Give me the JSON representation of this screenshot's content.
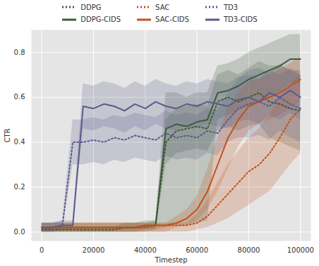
{
  "chart_data": {
    "type": "line",
    "xlabel": "Timestep",
    "ylabel": "CTR",
    "legend": "top",
    "grid": true,
    "xlim": [
      -4000,
      104000
    ],
    "xticks": [
      0,
      20000,
      40000,
      60000,
      80000,
      100000
    ],
    "ylim": [
      -0.04,
      0.9
    ],
    "yticks": [
      {
        "value": 0,
        "label": "0.0"
      },
      {
        "value": 0.2,
        "label": "0.2"
      },
      {
        "value": 0.4,
        "label": "0.4"
      },
      {
        "value": 0.6,
        "label": "0.6"
      },
      {
        "value": 0.8,
        "label": "0.8"
      }
    ],
    "x": [
      0,
      4000,
      8000,
      12000,
      16000,
      20000,
      24000,
      28000,
      32000,
      36000,
      40000,
      44000,
      48000,
      52000,
      56000,
      60000,
      64000,
      68000,
      72000,
      76000,
      80000,
      84000,
      88000,
      92000,
      96000,
      100000
    ],
    "series": [
      {
        "name": "DDPG",
        "color": "#3f5b3c",
        "line_style": "dotted",
        "values": [
          0.01,
          0.01,
          0.01,
          0.01,
          0.01,
          0.01,
          0.01,
          0.01,
          0.02,
          0.02,
          0.02,
          0.03,
          0.4,
          0.45,
          0.46,
          0.47,
          0.46,
          0.58,
          0.6,
          0.58,
          0.6,
          0.62,
          0.58,
          0.57,
          0.55,
          0.54
        ],
        "lower": [
          0,
          0,
          0,
          0,
          0,
          0,
          0,
          0,
          0,
          0,
          0,
          0.01,
          0.3,
          0.35,
          0.36,
          0.37,
          0.36,
          0.45,
          0.47,
          0.45,
          0.47,
          0.48,
          0.42,
          0.4,
          0.38,
          0.36
        ],
        "upper": [
          0.02,
          0.02,
          0.02,
          0.02,
          0.02,
          0.02,
          0.02,
          0.02,
          0.04,
          0.04,
          0.04,
          0.05,
          0.5,
          0.55,
          0.56,
          0.57,
          0.56,
          0.7,
          0.72,
          0.7,
          0.73,
          0.76,
          0.74,
          0.74,
          0.72,
          0.72
        ]
      },
      {
        "name": "SAC",
        "color": "#c4501b",
        "line_style": "dotted",
        "values": [
          0.02,
          0.02,
          0.02,
          0.02,
          0.02,
          0.02,
          0.02,
          0.02,
          0.02,
          0.02,
          0.02,
          0.03,
          0.03,
          0.03,
          0.03,
          0.04,
          0.07,
          0.12,
          0.17,
          0.22,
          0.27,
          0.3,
          0.35,
          0.42,
          0.5,
          0.55
        ],
        "lower": [
          0,
          0,
          0,
          0,
          0,
          0,
          0,
          0,
          0,
          0,
          0,
          0,
          0,
          0,
          0,
          0.01,
          0.02,
          0.04,
          0.06,
          0.09,
          0.12,
          0.15,
          0.18,
          0.24,
          0.3,
          0.35
        ],
        "upper": [
          0.04,
          0.04,
          0.04,
          0.04,
          0.04,
          0.04,
          0.04,
          0.04,
          0.04,
          0.04,
          0.04,
          0.04,
          0.04,
          0.04,
          0.04,
          0.08,
          0.14,
          0.22,
          0.3,
          0.36,
          0.42,
          0.46,
          0.52,
          0.6,
          0.66,
          0.7
        ]
      },
      {
        "name": "TD3",
        "color": "#5b5a8c",
        "line_style": "dotted",
        "values": [
          0.02,
          0.02,
          0.03,
          0.4,
          0.4,
          0.41,
          0.4,
          0.42,
          0.41,
          0.43,
          0.42,
          0.41,
          0.44,
          0.42,
          0.43,
          0.42,
          0.45,
          0.44,
          0.5,
          0.55,
          0.57,
          0.58,
          0.56,
          0.6,
          0.57,
          0.55
        ],
        "lower": [
          0,
          0,
          0.01,
          0.3,
          0.3,
          0.31,
          0.3,
          0.32,
          0.31,
          0.33,
          0.32,
          0.31,
          0.34,
          0.32,
          0.33,
          0.32,
          0.35,
          0.34,
          0.4,
          0.42,
          0.42,
          0.43,
          0.41,
          0.45,
          0.42,
          0.4
        ],
        "upper": [
          0.04,
          0.04,
          0.05,
          0.5,
          0.5,
          0.51,
          0.5,
          0.52,
          0.51,
          0.53,
          0.52,
          0.51,
          0.54,
          0.52,
          0.53,
          0.52,
          0.55,
          0.54,
          0.62,
          0.68,
          0.72,
          0.73,
          0.71,
          0.75,
          0.72,
          0.7
        ]
      },
      {
        "name": "DDPG-CIDS",
        "color": "#3f5b3c",
        "line_style": "solid",
        "values": [
          0.02,
          0.02,
          0.02,
          0.02,
          0.02,
          0.02,
          0.02,
          0.02,
          0.02,
          0.02,
          0.03,
          0.03,
          0.46,
          0.48,
          0.47,
          0.49,
          0.5,
          0.62,
          0.63,
          0.65,
          0.68,
          0.7,
          0.72,
          0.74,
          0.77,
          0.77
        ],
        "lower": [
          0,
          0,
          0,
          0,
          0,
          0,
          0,
          0,
          0,
          0,
          0.01,
          0.01,
          0.02,
          0.03,
          0.03,
          0.04,
          0.05,
          0.5,
          0.52,
          0.54,
          0.56,
          0.58,
          0.6,
          0.62,
          0.66,
          0.66
        ],
        "upper": [
          0.04,
          0.04,
          0.04,
          0.04,
          0.04,
          0.04,
          0.04,
          0.04,
          0.04,
          0.04,
          0.05,
          0.05,
          0.62,
          0.62,
          0.6,
          0.62,
          0.62,
          0.74,
          0.75,
          0.77,
          0.8,
          0.82,
          0.84,
          0.86,
          0.88,
          0.88
        ]
      },
      {
        "name": "SAC-CIDS",
        "color": "#c4501b",
        "line_style": "solid",
        "values": [
          0.02,
          0.02,
          0.02,
          0.02,
          0.02,
          0.02,
          0.02,
          0.02,
          0.02,
          0.02,
          0.03,
          0.03,
          0.03,
          0.04,
          0.06,
          0.1,
          0.18,
          0.3,
          0.42,
          0.5,
          0.56,
          0.58,
          0.6,
          0.62,
          0.65,
          0.68
        ],
        "lower": [
          0,
          0,
          0,
          0,
          0,
          0,
          0,
          0,
          0,
          0,
          0,
          0,
          0,
          0.02,
          0.03,
          0.05,
          0.1,
          0.18,
          0.28,
          0.38,
          0.45,
          0.48,
          0.5,
          0.52,
          0.55,
          0.58
        ],
        "upper": [
          0.04,
          0.04,
          0.04,
          0.04,
          0.04,
          0.04,
          0.04,
          0.04,
          0.04,
          0.04,
          0.04,
          0.04,
          0.04,
          0.07,
          0.1,
          0.16,
          0.28,
          0.42,
          0.56,
          0.62,
          0.67,
          0.68,
          0.7,
          0.72,
          0.75,
          0.78
        ]
      },
      {
        "name": "TD3-CIDS",
        "color": "#5b5a8c",
        "line_style": "solid",
        "values": [
          0.02,
          0.02,
          0.03,
          0.03,
          0.56,
          0.55,
          0.57,
          0.56,
          0.54,
          0.57,
          0.55,
          0.58,
          0.56,
          0.55,
          0.57,
          0.56,
          0.58,
          0.57,
          0.56,
          0.59,
          0.6,
          0.58,
          0.62,
          0.6,
          0.63,
          0.6
        ],
        "lower": [
          0,
          0,
          0.01,
          0.01,
          0.46,
          0.45,
          0.47,
          0.46,
          0.44,
          0.47,
          0.45,
          0.48,
          0.46,
          0.45,
          0.47,
          0.46,
          0.48,
          0.47,
          0.46,
          0.49,
          0.5,
          0.48,
          0.52,
          0.5,
          0.53,
          0.5
        ],
        "upper": [
          0.04,
          0.04,
          0.05,
          0.05,
          0.66,
          0.65,
          0.67,
          0.66,
          0.64,
          0.67,
          0.65,
          0.68,
          0.66,
          0.65,
          0.67,
          0.66,
          0.68,
          0.67,
          0.66,
          0.69,
          0.7,
          0.68,
          0.72,
          0.7,
          0.73,
          0.7
        ]
      }
    ]
  }
}
